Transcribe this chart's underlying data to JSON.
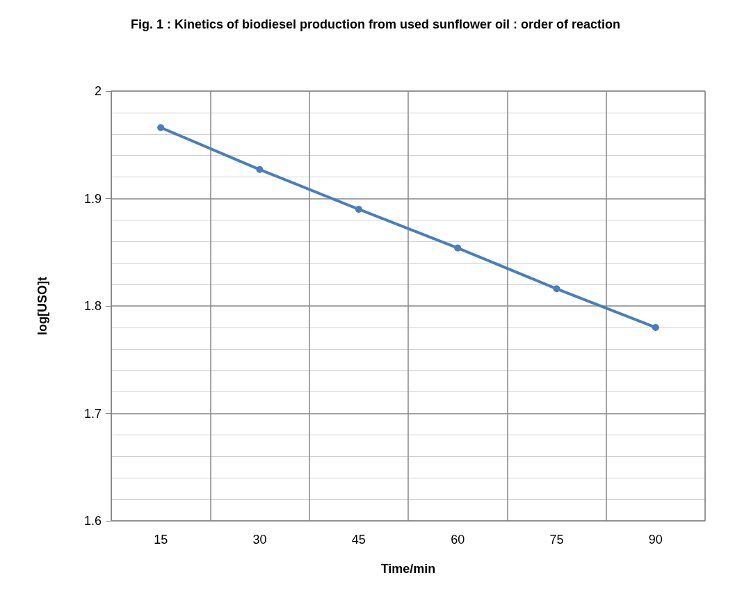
{
  "chart_data": {
    "type": "line",
    "title": "Fig. 1 : Kinetics of biodiesel production from used sunflower oil : order of reaction",
    "xlabel": "Time/min",
    "ylabel": "log[USO]t",
    "categories": [
      "15",
      "30",
      "45",
      "60",
      "75",
      "90"
    ],
    "series": [
      {
        "color": "#4a7ebb",
        "values": [
          1.966,
          1.927,
          1.89,
          1.854,
          1.816,
          1.78
        ]
      }
    ],
    "ylim": [
      1.6,
      2
    ],
    "yticks": [
      1.6,
      1.7,
      1.8,
      1.9,
      2
    ],
    "grid": true,
    "marker": "circle",
    "line_style": "solid"
  }
}
